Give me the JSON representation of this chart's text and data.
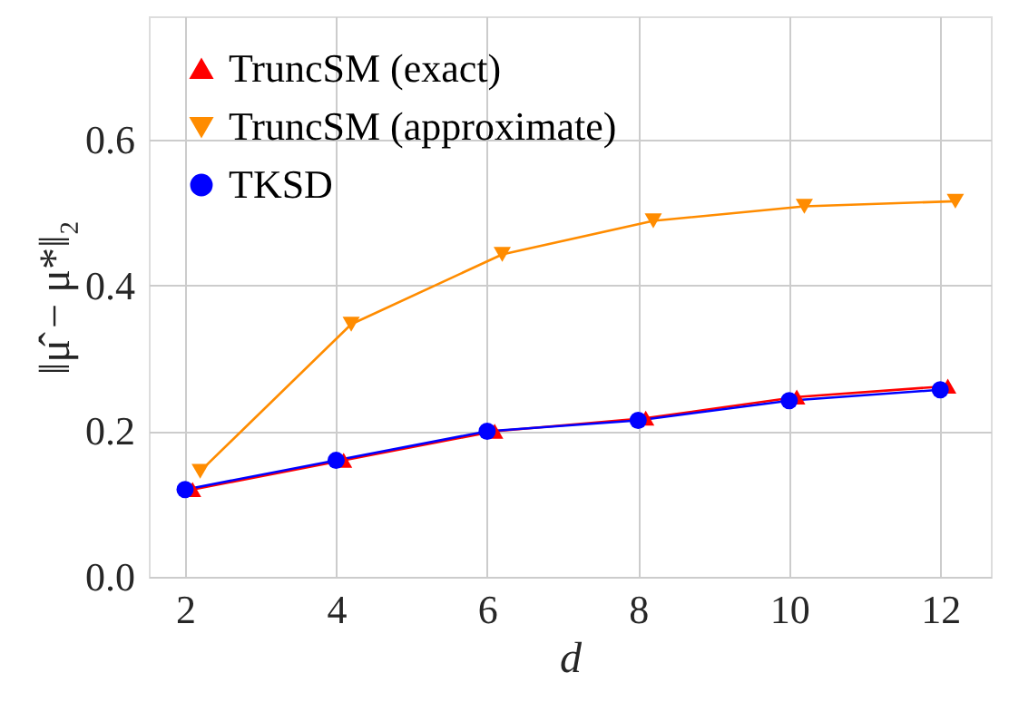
{
  "chart_data": {
    "type": "line",
    "xlabel": "d",
    "ylabel": "‖μ̂ − μ*‖₂",
    "xlim": [
      1.52,
      12.67
    ],
    "ylim": [
      0,
      0.77
    ],
    "xticks": [
      2,
      4,
      6,
      8,
      10,
      12
    ],
    "yticks": [
      {
        "value": 0,
        "label": "0.0"
      },
      0.2,
      0.4,
      0.6
    ],
    "grid": true,
    "legend": "top left",
    "line_style": "solid",
    "series": [
      {
        "name": "TruncSM (exact)",
        "color": "#ff0000",
        "marker": "triangle",
        "x": [
          2.1,
          4.1,
          6.1,
          8.1,
          10.1,
          12.1
        ],
        "values": [
          0.12,
          0.16,
          0.2,
          0.218,
          0.247,
          0.262
        ]
      },
      {
        "name": "TruncSM (approximate)",
        "color": "#ff8c00",
        "marker": "triangle-down",
        "x": [
          2.2,
          4.2,
          6.2,
          8.2,
          10.2,
          12.2
        ],
        "values": [
          0.145,
          0.347,
          0.443,
          0.489,
          0.509,
          0.516
        ]
      },
      {
        "name": "TKSD",
        "color": "#0000ff",
        "marker": "circle",
        "x": [
          2,
          4,
          6,
          8,
          10,
          12
        ],
        "values": [
          0.12,
          0.16,
          0.2,
          0.215,
          0.242,
          0.257
        ]
      }
    ]
  }
}
